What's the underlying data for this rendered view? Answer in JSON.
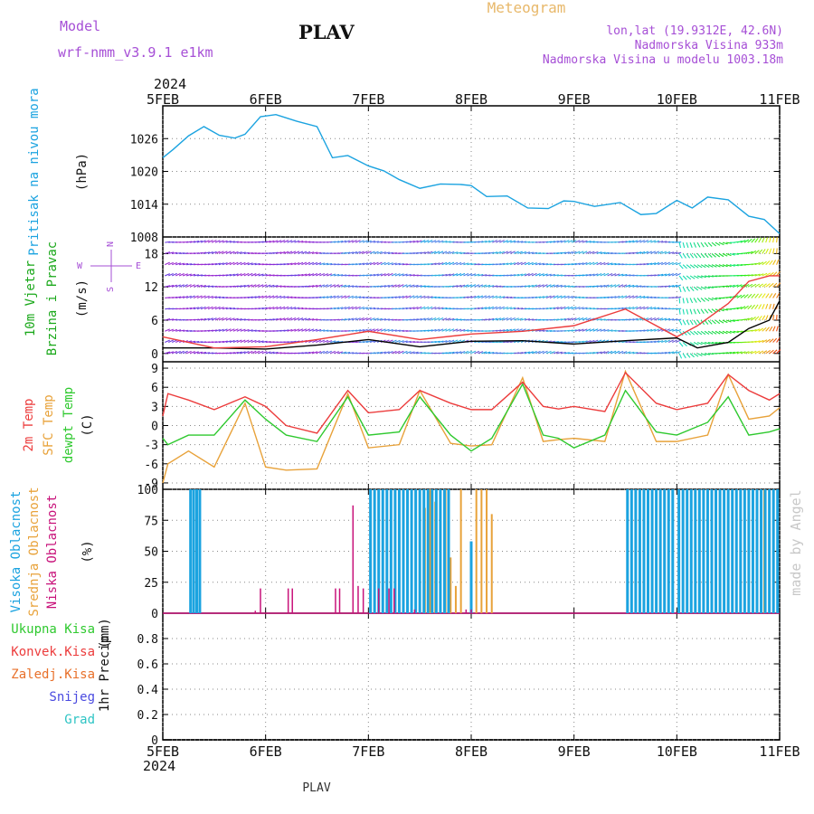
{
  "header": {
    "model_label": "Model",
    "model_name": "wrf-nmm_v3.9.1  e1km",
    "station": "PLAV",
    "title": "Meteogram",
    "lonlat": "lon,lat (19.9312E, 42.6N)",
    "elevation": "Nadmorska Visina 933m",
    "model_elevation": "Nadmorska Visina u modelu 1003.18m",
    "footer_station": "PLAV",
    "watermark": "made by Angel",
    "year": "2024"
  },
  "x_ticks": [
    "5FEB",
    "6FEB",
    "7FEB",
    "8FEB",
    "9FEB",
    "10FEB",
    "11FEB"
  ],
  "colors": {
    "pressure": "#1ba3e0",
    "temp2m": "#ec3c3c",
    "sfc_temp": "#e8a23a",
    "dewpt": "#2fc92f",
    "high_cloud": "#1ba3e0",
    "mid_cloud": "#e8a23a",
    "low_cloud": "#c8127a",
    "model": "#a64fd6",
    "wind_axis": "#a64fd6"
  },
  "chart_data": [
    {
      "type": "line",
      "panel": "pressure",
      "ylabel_lines": [
        "Pritisak na nivou mora",
        "(hPa)"
      ],
      "ylim": [
        1008,
        1032
      ],
      "yticks": [
        1008,
        1014,
        1020,
        1026
      ],
      "series": [
        {
          "name": "Pritisak na nivou mora",
          "x": [
            0,
            0.1,
            0.25,
            0.4,
            0.55,
            0.7,
            0.8,
            0.95,
            1.1,
            1.3,
            1.5,
            1.65,
            1.8,
            2.0,
            2.15,
            2.3,
            2.5,
            2.7,
            2.9,
            3.0,
            3.15,
            3.35,
            3.55,
            3.75,
            3.9,
            4.0,
            4.2,
            4.45,
            4.65,
            4.8,
            5.0,
            5.15,
            5.3,
            5.5,
            5.7,
            5.85,
            6.0
          ],
          "values": [
            1022.5,
            1024,
            1026.5,
            1028.2,
            1026.6,
            1026.1,
            1026.8,
            1030,
            1030.4,
            1029.2,
            1028.2,
            1022.5,
            1022.9,
            1021,
            1020.1,
            1018.5,
            1016.9,
            1017.7,
            1017.6,
            1017.4,
            1015.4,
            1015.5,
            1013.3,
            1013.2,
            1014.6,
            1014.5,
            1013.6,
            1014.3,
            1012.1,
            1012.3,
            1014.7,
            1013.3,
            1015.3,
            1014.8,
            1011.8,
            1011.2,
            1008.6
          ]
        }
      ]
    },
    {
      "type": "vector",
      "panel": "wind",
      "ylabel_lines": [
        "10m Vjetar",
        "Brzina i Pravac",
        "(m/s)"
      ],
      "direction_key": {
        "n": "N",
        "w": "W",
        "e": "E",
        "s": "S"
      },
      "ylim": [
        -1.5,
        21
      ],
      "yticks": [
        0,
        6,
        12,
        18
      ],
      "series": [
        {
          "name": "speed_a",
          "color": "#000000",
          "x": [
            0,
            0.5,
            1.0,
            1.5,
            2.0,
            2.5,
            3.0,
            3.5,
            4.0,
            4.5,
            5.0,
            5.2,
            5.5,
            5.7,
            5.9,
            6.0
          ],
          "values": [
            1,
            1,
            0.8,
            1.5,
            2.5,
            1.2,
            2.2,
            2.3,
            1.7,
            2.3,
            2.8,
            1,
            2,
            4.5,
            6,
            9.5
          ]
        },
        {
          "name": "speed_b",
          "color": "#ec3c3c",
          "x": [
            0,
            0.5,
            1.0,
            1.5,
            2.0,
            2.5,
            3.0,
            3.5,
            4.0,
            4.5,
            5.0,
            5.2,
            5.5,
            5.7,
            5.9,
            6.0
          ],
          "values": [
            3,
            1,
            1.2,
            2.5,
            4,
            2.5,
            3.5,
            4,
            5,
            8,
            3,
            5,
            9,
            13,
            14,
            14
          ]
        }
      ],
      "arrow_rows": [
        0,
        2,
        4,
        6,
        8,
        10,
        12,
        14,
        16,
        18,
        20
      ]
    },
    {
      "type": "line",
      "panel": "temperature",
      "ylabel_lines": [
        "2m Temp",
        "SFC Temp",
        "dewpt Temp",
        "(C)"
      ],
      "ylim": [
        -10,
        10
      ],
      "yticks": [
        -9,
        -6,
        -3,
        0,
        3,
        6,
        9
      ],
      "series": [
        {
          "name": "2m Temp",
          "x": [
            0,
            0.05,
            0.25,
            0.5,
            0.8,
            1.0,
            1.2,
            1.5,
            1.8,
            2.0,
            2.3,
            2.5,
            2.8,
            3.0,
            3.2,
            3.5,
            3.7,
            3.85,
            4.0,
            4.3,
            4.5,
            4.8,
            5.0,
            5.3,
            5.5,
            5.7,
            5.9,
            6.0
          ],
          "values": [
            1.5,
            5,
            4,
            2.5,
            4.5,
            3,
            0,
            -1.2,
            5.5,
            2,
            2.5,
            5.5,
            3.5,
            2.5,
            2.5,
            6.8,
            3,
            2.6,
            3,
            2.2,
            8.3,
            3.5,
            2.5,
            3.5,
            8,
            5.5,
            4,
            5
          ]
        },
        {
          "name": "SFC Temp",
          "x": [
            0,
            0.05,
            0.25,
            0.5,
            0.8,
            1.0,
            1.2,
            1.5,
            1.8,
            2.0,
            2.3,
            2.5,
            2.8,
            3.0,
            3.2,
            3.5,
            3.7,
            3.85,
            4.0,
            4.3,
            4.5,
            4.8,
            5.0,
            5.3,
            5.5,
            5.7,
            5.9,
            6.0
          ],
          "values": [
            -9,
            -6,
            -4,
            -6.5,
            3.5,
            -6.5,
            -7,
            -6.8,
            5,
            -3.5,
            -3,
            5.5,
            -2.8,
            -3.2,
            -3,
            7.5,
            -2.5,
            -2.2,
            -2,
            -2.5,
            8.5,
            -2.5,
            -2.5,
            -1.5,
            8,
            1,
            1.5,
            2.8
          ]
        },
        {
          "name": "dewpt Temp",
          "x": [
            0,
            0.05,
            0.25,
            0.5,
            0.8,
            1.0,
            1.2,
            1.5,
            1.8,
            2.0,
            2.3,
            2.5,
            2.8,
            3.0,
            3.2,
            3.5,
            3.7,
            3.85,
            4.0,
            4.3,
            4.5,
            4.8,
            5.0,
            5.3,
            5.5,
            5.7,
            5.9,
            6.0
          ],
          "values": [
            -2,
            -3,
            -1.5,
            -1.5,
            4,
            1,
            -1.5,
            -2.5,
            4.5,
            -1.5,
            -1,
            4.5,
            -1.5,
            -4,
            -2,
            6.5,
            -1.5,
            -2,
            -3.5,
            -1.5,
            5.5,
            -1,
            -1.5,
            0.5,
            4.5,
            -1.5,
            -1,
            -0.5
          ]
        }
      ]
    },
    {
      "type": "bar",
      "panel": "clouds",
      "ylabel_lines": [
        "Visoka Oblacnost",
        "Srednja Oblacnost",
        "Niska Oblacnost",
        "(%)"
      ],
      "ylim": [
        0,
        100
      ],
      "yticks": [
        0,
        25,
        50,
        75,
        100
      ],
      "series": [
        {
          "name": "Visoka Oblacnost",
          "x": [
            0.27,
            0.3,
            0.33,
            0.36,
            2.02,
            2.06,
            2.1,
            2.14,
            2.18,
            2.22,
            2.26,
            2.3,
            2.34,
            2.38,
            2.42,
            2.46,
            2.5,
            2.54,
            2.58,
            2.62,
            2.66,
            2.7,
            2.74,
            2.78,
            3.0,
            4.52,
            4.56,
            4.6,
            4.64,
            4.68,
            4.72,
            4.76,
            4.8,
            4.84,
            4.88,
            4.92,
            4.96,
            5.02,
            5.06,
            5.1,
            5.14,
            5.18,
            5.22,
            5.26,
            5.3,
            5.34,
            5.38,
            5.42,
            5.46,
            5.5,
            5.54,
            5.58,
            5.62,
            5.66,
            5.7,
            5.74,
            5.78,
            5.82,
            5.86,
            5.9,
            5.94,
            5.98
          ],
          "values": [
            100,
            100,
            100,
            100,
            100,
            100,
            100,
            100,
            100,
            100,
            100,
            100,
            100,
            100,
            100,
            100,
            100,
            100,
            100,
            100,
            100,
            100,
            100,
            100,
            58,
            100,
            100,
            100,
            100,
            100,
            100,
            100,
            100,
            100,
            100,
            100,
            100,
            100,
            100,
            100,
            100,
            100,
            100,
            100,
            100,
            100,
            100,
            100,
            100,
            100,
            100,
            100,
            100,
            100,
            100,
            100,
            100,
            100,
            100,
            100,
            100,
            100
          ]
        },
        {
          "name": "Srednja Oblacnost",
          "x": [
            2.5,
            2.55,
            2.6,
            2.65,
            2.7,
            2.75,
            2.8,
            2.85,
            2.9,
            3.05,
            3.1,
            3.15,
            3.2,
            5.85,
            5.9
          ],
          "values": [
            100,
            85,
            100,
            90,
            100,
            100,
            45,
            22,
            100,
            100,
            100,
            100,
            80,
            100,
            100
          ]
        },
        {
          "name": "Niska Oblacnost",
          "x": [
            0.9,
            0.95,
            1.22,
            1.26,
            1.68,
            1.72,
            1.85,
            1.9,
            1.95,
            2.1,
            2.2,
            2.25,
            2.45,
            2.95,
            3.0
          ],
          "values": [
            2,
            20,
            20,
            20,
            20,
            20,
            87,
            22,
            20,
            20,
            20,
            20,
            3,
            3,
            3
          ]
        }
      ]
    },
    {
      "type": "bar",
      "panel": "precipitation",
      "ylabel_lines": [
        "1hr Precip",
        "(mm)"
      ],
      "legend_lines": [
        "Ukupna  Kisa",
        "Konvek.Kisa",
        "Zaledj.Kisa",
        "Snijeg",
        "Grad"
      ],
      "legend_colors": [
        "#2fc92f",
        "#ec3c3c",
        "#e8702a",
        "#4a4ae0",
        "#2ec4c4"
      ],
      "ylim": [
        0,
        1
      ],
      "yticks": [
        0,
        0.2,
        0.4,
        0.6,
        0.8
      ],
      "series": []
    }
  ]
}
